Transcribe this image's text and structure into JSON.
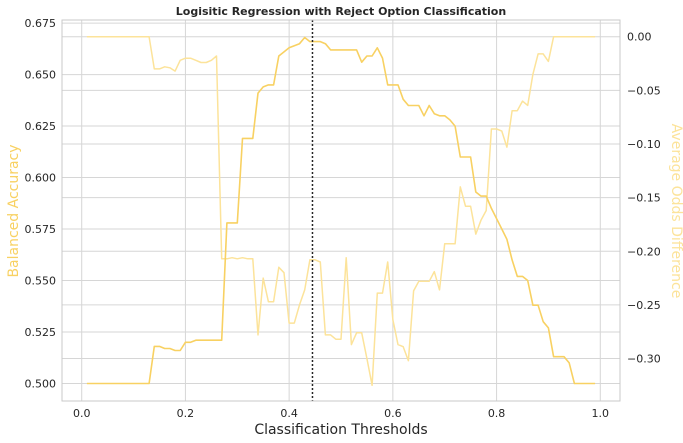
{
  "chart_data": {
    "type": "line",
    "title": "Logisitic Regression with Reject Option Classification",
    "xlabel": "Classification Thresholds",
    "ylabel": "Balanced Accuracy",
    "y2label": "Average Odds Difference",
    "xlim": [
      -0.038,
      1.038
    ],
    "ylim": [
      0.4915,
      0.6765
    ],
    "y2lim": [
      -0.3396,
      0.0156
    ],
    "xticks": [
      "0.0",
      "0.2",
      "0.4",
      "0.6",
      "0.8",
      "1.0"
    ],
    "xtick_values": [
      0.0,
      0.2,
      0.4,
      0.6,
      0.8,
      1.0
    ],
    "yticks": [
      "0.500",
      "0.525",
      "0.550",
      "0.575",
      "0.600",
      "0.625",
      "0.650",
      "0.675"
    ],
    "ytick_values": [
      0.5,
      0.525,
      0.55,
      0.575,
      0.6,
      0.625,
      0.65,
      0.675
    ],
    "y2ticks": [
      "0.00",
      "−0.05",
      "−0.10",
      "−0.15",
      "−0.20",
      "−0.25",
      "−0.30"
    ],
    "y2tick_values": [
      0.0,
      -0.05,
      -0.1,
      -0.15,
      -0.2,
      -0.25,
      -0.3
    ],
    "grid": true,
    "vline_x": 0.445,
    "colors": {
      "balanced_accuracy": "#F8D162",
      "avg_odds_diff": "#FCE39A",
      "vline": "#262626",
      "grid": "#D6D6D6",
      "frame": "#C9C9C9"
    },
    "thresholds": [
      0.01,
      0.02,
      0.03,
      0.04,
      0.05,
      0.06,
      0.07,
      0.08,
      0.09,
      0.1,
      0.11,
      0.12,
      0.13,
      0.14,
      0.15,
      0.16,
      0.17,
      0.18,
      0.19,
      0.2,
      0.21,
      0.22,
      0.23,
      0.24,
      0.25,
      0.26,
      0.27,
      0.28,
      0.29,
      0.3,
      0.31,
      0.32,
      0.33,
      0.34,
      0.35,
      0.36,
      0.37,
      0.38,
      0.39,
      0.4,
      0.41,
      0.42,
      0.43,
      0.44,
      0.45,
      0.46,
      0.47,
      0.48,
      0.49,
      0.5,
      0.51,
      0.52,
      0.53,
      0.54,
      0.55,
      0.56,
      0.57,
      0.58,
      0.59,
      0.6,
      0.61,
      0.62,
      0.63,
      0.64,
      0.65,
      0.66,
      0.67,
      0.68,
      0.69,
      0.7,
      0.71,
      0.72,
      0.73,
      0.74,
      0.75,
      0.76,
      0.77,
      0.78,
      0.79,
      0.8,
      0.81,
      0.82,
      0.83,
      0.84,
      0.85,
      0.86,
      0.87,
      0.88,
      0.89,
      0.9,
      0.91,
      0.92,
      0.93,
      0.94,
      0.95,
      0.96,
      0.97,
      0.98,
      0.99
    ],
    "series": [
      {
        "name": "Balanced Accuracy",
        "axis": "left",
        "values": [
          0.5,
          0.5,
          0.5,
          0.5,
          0.5,
          0.5,
          0.5,
          0.5,
          0.5,
          0.5,
          0.5,
          0.5,
          0.5,
          0.518,
          0.518,
          0.517,
          0.517,
          0.516,
          0.516,
          0.52,
          0.52,
          0.521,
          0.521,
          0.521,
          0.521,
          0.521,
          0.521,
          0.578,
          0.578,
          0.578,
          0.619,
          0.619,
          0.619,
          0.641,
          0.644,
          0.645,
          0.645,
          0.659,
          0.661,
          0.663,
          0.664,
          0.665,
          0.668,
          0.666,
          0.666,
          0.666,
          0.665,
          0.662,
          0.662,
          0.662,
          0.662,
          0.662,
          0.662,
          0.656,
          0.659,
          0.659,
          0.663,
          0.658,
          0.645,
          0.645,
          0.645,
          0.638,
          0.635,
          0.635,
          0.635,
          0.63,
          0.635,
          0.631,
          0.63,
          0.63,
          0.628,
          0.625,
          0.61,
          0.61,
          0.61,
          0.593,
          0.591,
          0.591,
          0.585,
          0.58,
          0.575,
          0.57,
          0.56,
          0.552,
          0.552,
          0.55,
          0.538,
          0.538,
          0.53,
          0.527,
          0.513,
          0.513,
          0.513,
          0.51,
          0.5,
          0.5,
          0.5,
          0.5,
          0.5
        ]
      },
      {
        "name": "Average Odds Difference",
        "axis": "right",
        "values": [
          0.0,
          0.0,
          0.0,
          0.0,
          0.0,
          0.0,
          0.0,
          0.0,
          0.0,
          0.0,
          0.0,
          0.0,
          0.0,
          -0.03,
          -0.03,
          -0.028,
          -0.029,
          -0.032,
          -0.022,
          -0.02,
          -0.02,
          -0.022,
          -0.024,
          -0.024,
          -0.022,
          -0.018,
          -0.207,
          -0.207,
          -0.206,
          -0.207,
          -0.206,
          -0.207,
          -0.207,
          -0.278,
          -0.225,
          -0.247,
          -0.247,
          -0.215,
          -0.22,
          -0.267,
          -0.267,
          -0.25,
          -0.236,
          -0.208,
          -0.208,
          -0.21,
          -0.278,
          -0.278,
          -0.282,
          -0.282,
          -0.206,
          -0.287,
          -0.276,
          -0.276,
          -0.3,
          -0.325,
          -0.239,
          -0.239,
          -0.21,
          -0.264,
          -0.287,
          -0.289,
          -0.302,
          -0.237,
          -0.228,
          -0.228,
          -0.228,
          -0.219,
          -0.236,
          -0.193,
          -0.193,
          -0.193,
          -0.14,
          -0.158,
          -0.158,
          -0.184,
          -0.171,
          -0.162,
          -0.086,
          -0.086,
          -0.088,
          -0.103,
          -0.069,
          -0.069,
          -0.06,
          -0.064,
          -0.035,
          -0.016,
          -0.016,
          -0.023,
          0.0,
          0.0,
          0.0,
          0.0,
          0.0,
          0.0,
          0.0,
          0.0,
          0.0
        ]
      }
    ]
  }
}
